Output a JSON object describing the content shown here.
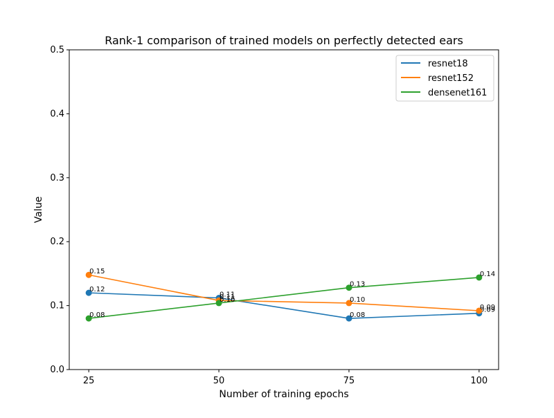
{
  "chart_data": {
    "type": "line",
    "title": "Rank-1 comparison of trained models on perfectly detected ears",
    "xlabel": "Number of training epochs",
    "ylabel": "Value",
    "x": [
      25,
      50,
      75,
      100
    ],
    "xticks": [
      "25",
      "50",
      "75",
      "100"
    ],
    "ylim": [
      0,
      0.5
    ],
    "yticks": [
      "0.0",
      "0.1",
      "0.2",
      "0.3",
      "0.4",
      "0.5"
    ],
    "grid": false,
    "legend_position": "top-right",
    "series": [
      {
        "name": "resnet18",
        "color": "#1f77b4",
        "values": [
          0.12,
          0.112,
          0.08,
          0.088
        ],
        "labels": [
          "0.12",
          "0.11",
          "0.08",
          "0.09"
        ]
      },
      {
        "name": "resnet152",
        "color": "#ff7f0e",
        "values": [
          0.148,
          0.108,
          0.104,
          0.092
        ],
        "labels": [
          "0.15",
          "0.11",
          "0.10",
          "0.09"
        ]
      },
      {
        "name": "densenet161",
        "color": "#2ca02c",
        "values": [
          0.08,
          0.104,
          0.128,
          0.144
        ],
        "labels": [
          "0.08",
          "0.10",
          "0.13",
          "0.14"
        ]
      }
    ]
  }
}
